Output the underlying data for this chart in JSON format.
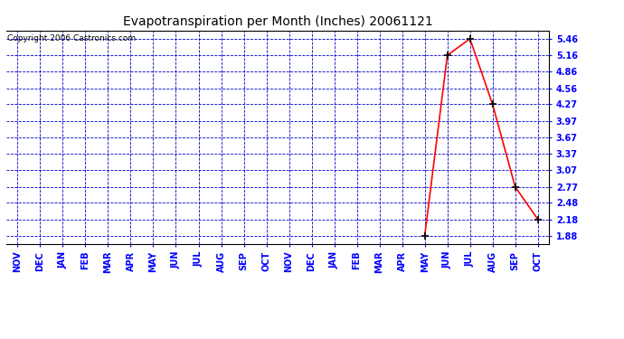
{
  "title": "Evapotranspiration per Month (Inches) 20061121",
  "copyright": "Copyright 2006 Castronics.com",
  "x_labels": [
    "NOV",
    "DEC",
    "JAN",
    "FEB",
    "MAR",
    "APR",
    "MAY",
    "JUN",
    "JUL",
    "AUG",
    "SEP",
    "OCT",
    "NOV",
    "DEC",
    "JAN",
    "FEB",
    "MAR",
    "APR",
    "MAY",
    "JUN",
    "JUL",
    "AUG",
    "SEP",
    "OCT"
  ],
  "data_x_indices": [
    18,
    19,
    20,
    21,
    22,
    23
  ],
  "data_values": [
    1.88,
    5.16,
    5.46,
    4.27,
    2.77,
    2.18
  ],
  "yticks": [
    1.88,
    2.18,
    2.48,
    2.77,
    3.07,
    3.37,
    3.67,
    3.97,
    4.27,
    4.56,
    4.86,
    5.16,
    5.46
  ],
  "ylim": [
    1.73,
    5.61
  ],
  "line_color": "#ff0000",
  "marker_color": "#000000",
  "grid_color": "#0000cc",
  "plot_bg_color": "#ffffff",
  "title_fontsize": 10,
  "tick_fontsize": 7,
  "copyright_fontsize": 6.5
}
